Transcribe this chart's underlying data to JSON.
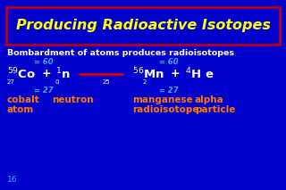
{
  "bg_color": "#0000CC",
  "title": "Producing Radioactive Isotopes",
  "title_color": "#FFFF00",
  "title_border_color": "#CC0000",
  "subtitle": "Bombardment of atoms produces radioisotopes",
  "orange": "#FF7700",
  "white": "#FFFFFF",
  "yellow": "#FFFF00",
  "red": "#DD0000",
  "cyan": "#44AAFF",
  "slide_num": "16",
  "fig_w": 3.2,
  "fig_h": 2.13,
  "dpi": 100
}
